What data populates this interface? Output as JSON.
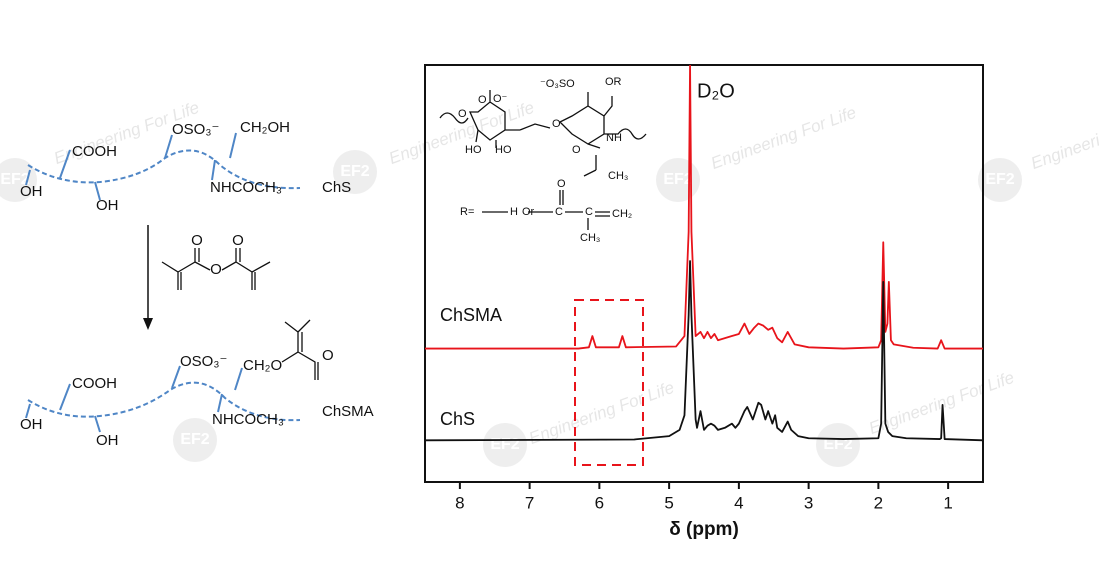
{
  "chart_data": {
    "type": "line",
    "xlabel": "δ (ppm)",
    "annotation": "D₂O",
    "xlim": [
      8.5,
      0.5
    ],
    "xticks": [
      8,
      7,
      6,
      5,
      4,
      3,
      2,
      1
    ],
    "ylim": [
      0,
      100
    ],
    "grid": false,
    "series": [
      {
        "name": "ChSMA",
        "color": "#e8141b",
        "x": [
          8.5,
          6.3,
          6.15,
          6.1,
          6.05,
          5.72,
          5.67,
          5.62,
          4.9,
          4.78,
          4.72,
          4.7,
          4.68,
          4.62,
          4.55,
          4.5,
          4.45,
          4.4,
          4.35,
          4.3,
          4.2,
          4.1,
          4.0,
          3.92,
          3.85,
          3.78,
          3.72,
          3.65,
          3.58,
          3.52,
          3.45,
          3.38,
          3.3,
          3.2,
          3.0,
          2.5,
          2.0,
          1.96,
          1.93,
          1.9,
          1.87,
          1.85,
          1.82,
          1.78,
          1.5,
          1.15,
          1.1,
          1.05,
          0.5
        ],
        "values": [
          32,
          32,
          32.3,
          35,
          32.3,
          32.3,
          35,
          32.3,
          32.5,
          35,
          60,
          100,
          60,
          35,
          36,
          34.5,
          36,
          34.5,
          35.5,
          34,
          34.5,
          35,
          35.5,
          38,
          35.5,
          37,
          38,
          37.5,
          36.5,
          37,
          34.5,
          33.5,
          36,
          33,
          32.3,
          32,
          32.3,
          34,
          57.5,
          36,
          38,
          48,
          34,
          33,
          32.2,
          32,
          34,
          32,
          32
        ]
      },
      {
        "name": "ChS",
        "color": "#111111",
        "x": [
          8.5,
          5.5,
          5.0,
          4.85,
          4.78,
          4.72,
          4.7,
          4.68,
          4.62,
          4.6,
          4.55,
          4.5,
          4.45,
          4.4,
          4.35,
          4.3,
          4.2,
          4.1,
          4.05,
          4.0,
          3.92,
          3.88,
          3.8,
          3.72,
          3.68,
          3.62,
          3.58,
          3.52,
          3.48,
          3.45,
          3.38,
          3.3,
          3.25,
          3.15,
          3.0,
          2.5,
          2.0,
          1.96,
          1.93,
          1.9,
          1.86,
          1.8,
          1.6,
          1.12,
          1.1,
          1.08,
          1.05,
          0.5
        ],
        "values": [
          10,
          10.2,
          11,
          12.5,
          16,
          40,
          53,
          40,
          15,
          13,
          17,
          12.5,
          13.5,
          14,
          13.5,
          12.5,
          13,
          14,
          13,
          14,
          17,
          18,
          15,
          19,
          18.5,
          15,
          17,
          14,
          16,
          13,
          12,
          14.5,
          12.5,
          11,
          10.5,
          10.3,
          10.5,
          14,
          48,
          14,
          12,
          11,
          10.5,
          10.3,
          10.5,
          18.5,
          10.3,
          10
        ]
      }
    ]
  },
  "scheme": {
    "chs": {
      "cooh": "COOH",
      "oso3": "OSO₃⁻",
      "ch2oh": "CH₂OH",
      "oh1": "OH",
      "oh2": "OH",
      "nhcoch3": "NHCOCH₃",
      "name": "ChS"
    },
    "reagent": {
      "o1": "O",
      "o2": "O",
      "o3": "O"
    },
    "chsma": {
      "cooh": "COOH",
      "oso3": "OSO₃⁻",
      "ch2o": "CH₂O",
      "o": "O",
      "oh1": "OH",
      "oh2": "OH",
      "nhcoch3": "NHCOCH₃",
      "name": "ChSMA"
    }
  },
  "inset": {
    "carboxylate": "O⁻",
    "o_carbonyl": "O",
    "o_left": "O",
    "o_link": "O",
    "oso3": "⁻O₃SO",
    "or": "OR",
    "ho1": "HO",
    "ho2": "HO",
    "nh": "NH",
    "o_acetyl": "O",
    "ch3": "CH₃",
    "r_eq": "R=",
    "h": "H",
    "or_word": "Or",
    "o_meth": "O",
    "c1": "C",
    "c2": "C",
    "ch2": "CH₂",
    "ch3b": "CH₃"
  },
  "watermark": {
    "text": "Engineering For Life",
    "logo": "EF2"
  }
}
